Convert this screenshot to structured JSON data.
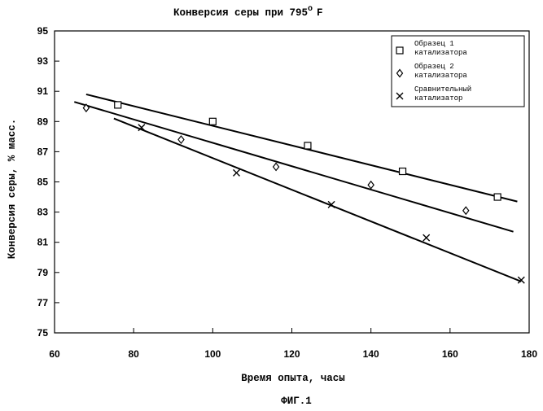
{
  "chart_data": {
    "type": "scatter",
    "title": "Конверсия серы при 795",
    "title_unit": "F",
    "title_degree": "o",
    "xlabel": "Время опыта, часы",
    "ylabel": "Конверсия серы, % масс.",
    "caption": "ФИГ.1",
    "xlim": [
      60,
      180
    ],
    "ylim": [
      75,
      95
    ],
    "xticks": [
      60,
      80,
      100,
      120,
      140,
      160,
      180
    ],
    "yticks": [
      75,
      77,
      79,
      81,
      83,
      85,
      87,
      89,
      91,
      93,
      95
    ],
    "grid": false,
    "legend_position": "top-right",
    "series": [
      {
        "legend_lines": [
          "Образец 1",
          "катализатора"
        ],
        "marker": "square",
        "points": [
          [
            76,
            90.1
          ],
          [
            100,
            89.0
          ],
          [
            124,
            87.4
          ],
          [
            148,
            85.7
          ],
          [
            172,
            84.0
          ]
        ],
        "trend": [
          [
            68,
            90.8
          ],
          [
            177,
            83.7
          ]
        ]
      },
      {
        "legend_lines": [
          "Образец 2",
          "катализатора"
        ],
        "marker": "diamond",
        "points": [
          [
            68,
            89.9
          ],
          [
            92,
            87.8
          ],
          [
            116,
            86.0
          ],
          [
            140,
            84.8
          ],
          [
            164,
            83.1
          ]
        ],
        "trend": [
          [
            65,
            90.3
          ],
          [
            176,
            81.7
          ]
        ]
      },
      {
        "legend_lines": [
          "Сравнительный",
          "катализатор"
        ],
        "marker": "x",
        "points": [
          [
            82,
            88.6
          ],
          [
            106,
            85.6
          ],
          [
            130,
            83.5
          ],
          [
            154,
            81.3
          ],
          [
            178,
            78.5
          ]
        ],
        "trend": [
          [
            75,
            89.2
          ],
          [
            178,
            78.4
          ]
        ]
      }
    ]
  }
}
